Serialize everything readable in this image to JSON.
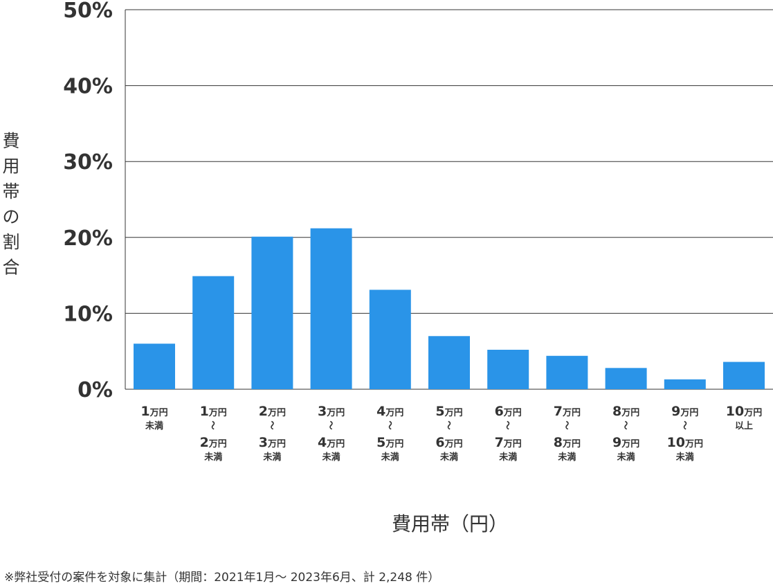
{
  "chart_data": {
    "type": "bar",
    "ylabel": "費用帯の割合",
    "xlabel": "費用帯（円）",
    "ylim": [
      0,
      50
    ],
    "yticks": [
      "0%",
      "10%",
      "20%",
      "30%",
      "40%",
      "50%"
    ],
    "grid": true,
    "bar_color": "#2a94e8",
    "categories": [
      {
        "lines": [
          {
            "num": "1",
            "unit": "万円"
          },
          {
            "small": "未満"
          }
        ]
      },
      {
        "lines": [
          {
            "num": "1",
            "unit": "万円"
          },
          {
            "tilde": "～"
          },
          {
            "num": "2",
            "unit": "万円"
          },
          {
            "small": "未満"
          }
        ]
      },
      {
        "lines": [
          {
            "num": "2",
            "unit": "万円"
          },
          {
            "tilde": "～"
          },
          {
            "num": "3",
            "unit": "万円"
          },
          {
            "small": "未満"
          }
        ]
      },
      {
        "lines": [
          {
            "num": "3",
            "unit": "万円"
          },
          {
            "tilde": "～"
          },
          {
            "num": "4",
            "unit": "万円"
          },
          {
            "small": "未満"
          }
        ]
      },
      {
        "lines": [
          {
            "num": "4",
            "unit": "万円"
          },
          {
            "tilde": "～"
          },
          {
            "num": "5",
            "unit": "万円"
          },
          {
            "small": "未満"
          }
        ]
      },
      {
        "lines": [
          {
            "num": "5",
            "unit": "万円"
          },
          {
            "tilde": "～"
          },
          {
            "num": "6",
            "unit": "万円"
          },
          {
            "small": "未満"
          }
        ]
      },
      {
        "lines": [
          {
            "num": "6",
            "unit": "万円"
          },
          {
            "tilde": "～"
          },
          {
            "num": "7",
            "unit": "万円"
          },
          {
            "small": "未満"
          }
        ]
      },
      {
        "lines": [
          {
            "num": "7",
            "unit": "万円"
          },
          {
            "tilde": "～"
          },
          {
            "num": "8",
            "unit": "万円"
          },
          {
            "small": "未満"
          }
        ]
      },
      {
        "lines": [
          {
            "num": "8",
            "unit": "万円"
          },
          {
            "tilde": "～"
          },
          {
            "num": "9",
            "unit": "万円"
          },
          {
            "small": "未満"
          }
        ]
      },
      {
        "lines": [
          {
            "num": "9",
            "unit": "万円"
          },
          {
            "tilde": "～"
          },
          {
            "num": "10",
            "unit": "万円"
          },
          {
            "small": "未満"
          }
        ]
      },
      {
        "lines": [
          {
            "num": "10",
            "unit": "万円"
          },
          {
            "small": "以上"
          }
        ]
      }
    ],
    "values": [
      6.0,
      14.9,
      20.1,
      21.2,
      13.1,
      7.0,
      5.2,
      4.4,
      2.8,
      1.3,
      3.6
    ]
  },
  "footnote": "※弊社受付の案件を対象に集計（期間：2021年1月～ 2023年6月、計 2,248 件）"
}
